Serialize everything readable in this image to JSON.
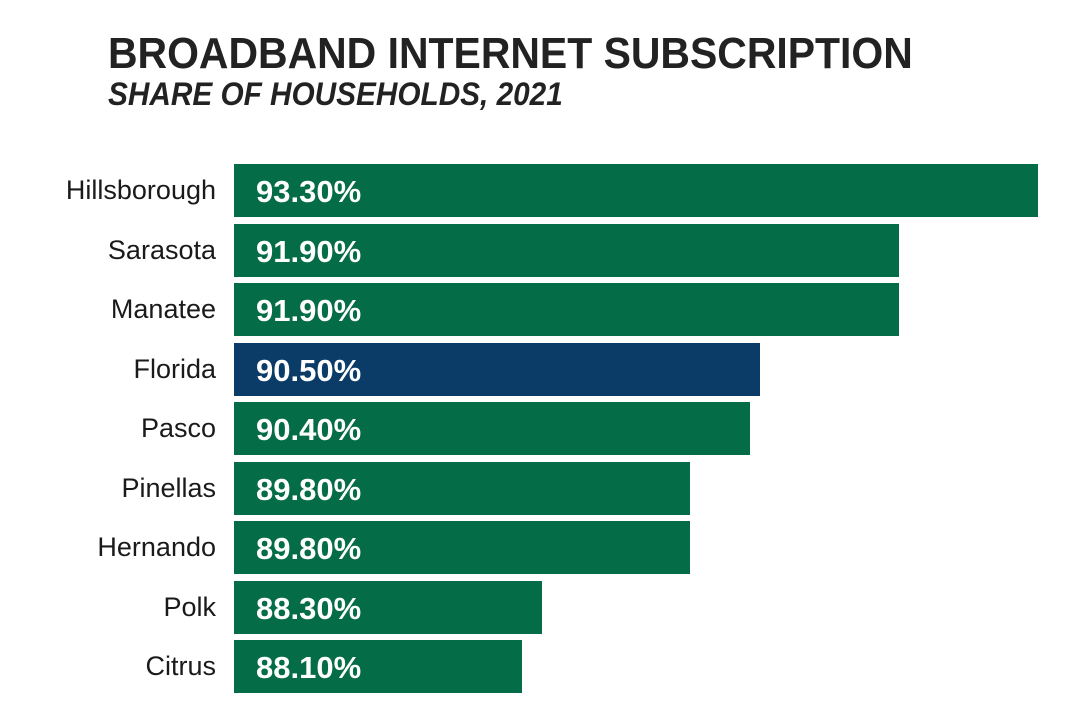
{
  "header": {
    "title": "BROADBAND INTERNET SUBSCRIPTION",
    "subtitle": "SHARE OF HOUSEHOLDS, 2021"
  },
  "colors": {
    "county_bar": "#046c46",
    "state_bar": "#0b3c68",
    "value_text": "#ffffff",
    "label_text": "#1a1a1a"
  },
  "chart_data": {
    "type": "bar",
    "orientation": "horizontal",
    "title": "BROADBAND INTERNET SUBSCRIPTION",
    "subtitle": "SHARE OF HOUSEHOLDS, 2021",
    "xlabel": "",
    "ylabel": "",
    "grid": false,
    "legend": null,
    "categories": [
      "Hillsborough",
      "Sarasota",
      "Manatee",
      "Florida",
      "Pasco",
      "Pinellas",
      "Hernando",
      "Polk",
      "Citrus"
    ],
    "values": [
      93.3,
      91.9,
      91.9,
      90.5,
      90.4,
      89.8,
      89.8,
      88.3,
      88.1
    ],
    "value_labels": [
      "93.30%",
      "91.90%",
      "91.90%",
      "90.50%",
      "90.40%",
      "89.80%",
      "89.80%",
      "88.30%",
      "88.10%"
    ],
    "highlight": "Florida",
    "xlim": [
      85.2,
      93.3
    ],
    "unit": "%"
  },
  "bars": [
    {
      "label": "Hillsborough",
      "value_label": "93.30%",
      "value": 93.3,
      "kind": "county"
    },
    {
      "label": "Sarasota",
      "value_label": "91.90%",
      "value": 91.9,
      "kind": "county"
    },
    {
      "label": "Manatee",
      "value_label": "91.90%",
      "value": 91.9,
      "kind": "county"
    },
    {
      "label": "Florida",
      "value_label": "90.50%",
      "value": 90.5,
      "kind": "state"
    },
    {
      "label": "Pasco",
      "value_label": "90.40%",
      "value": 90.4,
      "kind": "county"
    },
    {
      "label": "Pinellas",
      "value_label": "89.80%",
      "value": 89.8,
      "kind": "county"
    },
    {
      "label": "Hernando",
      "value_label": "89.80%",
      "value": 89.8,
      "kind": "county"
    },
    {
      "label": "Polk",
      "value_label": "88.30%",
      "value": 88.3,
      "kind": "county"
    },
    {
      "label": "Citrus",
      "value_label": "88.10%",
      "value": 88.1,
      "kind": "county"
    }
  ]
}
